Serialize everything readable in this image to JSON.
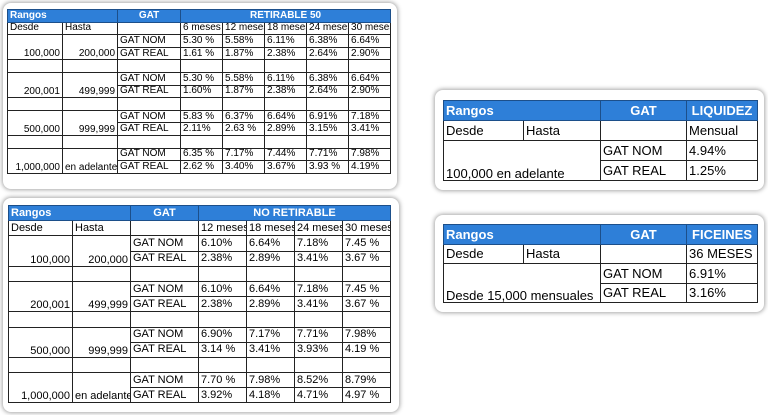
{
  "tables": [
    {
      "header": {
        "range": "Rangos",
        "gat": "GAT",
        "product": "RETIRABLE 50"
      },
      "subheader": {
        "from": "Desde",
        "to": "Hasta",
        "terms": [
          "6 meses",
          "12 meses",
          "18 meses",
          "24 meses",
          "30 meses"
        ]
      },
      "groups": [
        {
          "from": "100,000",
          "to": "200,000",
          "rows": [
            {
              "label": "GAT NOM",
              "values": [
                "5.30 %",
                "5.58%",
                "6.11%",
                "6.38%",
                "6.64%"
              ]
            },
            {
              "label": "GAT REAL",
              "values": [
                "1.61 %",
                "1.87%",
                "2.38%",
                "2.64%",
                "2.90%"
              ]
            }
          ]
        },
        {
          "from": "200,001",
          "to": "499,999",
          "rows": [
            {
              "label": "GAT NOM",
              "values": [
                "5.30 %",
                "5.58%",
                "6.11%",
                "6.38%",
                "6.64%"
              ]
            },
            {
              "label": "GAT REAL",
              "values": [
                "1.60%",
                "1.87%",
                "2.38%",
                "2.64%",
                "2.90%"
              ]
            }
          ]
        },
        {
          "from": "500,000",
          "to": "999,999",
          "rows": [
            {
              "label": "GAT NOM",
              "values": [
                "5.83 %",
                "6.37%",
                "6.64%",
                "6.91%",
                "7.18%"
              ]
            },
            {
              "label": "GAT REAL",
              "values": [
                "2.11%",
                "2.63 %",
                "2.89%",
                "3.15%",
                "3.41%"
              ]
            }
          ]
        },
        {
          "from": "1,000,000",
          "to": "en adelante",
          "rows": [
            {
              "label": "GAT NOM",
              "values": [
                "6.35 %",
                "7.17%",
                "7.44%",
                "7.71%",
                "7.98%"
              ]
            },
            {
              "label": "GAT REAL",
              "values": [
                "2.62 %",
                "3.40%",
                "3.67%",
                "3.93 %",
                "4.19%"
              ]
            }
          ]
        }
      ]
    },
    {
      "header": {
        "range": "Rangos",
        "gat": "GAT",
        "product": "NO RETIRABLE"
      },
      "subheader": {
        "from": "Desde",
        "to": "Hasta",
        "terms": [
          "12 meses",
          "18 meses",
          "24 meses",
          "30 meses"
        ]
      },
      "groups": [
        {
          "from": "100,000",
          "to": "200,000",
          "rows": [
            {
              "label": "GAT NOM",
              "values": [
                "6.10%",
                "6.64%",
                "7.18%",
                "7.45 %"
              ]
            },
            {
              "label": "GAT REAL",
              "values": [
                "2.38%",
                "2.89%",
                "3.41%",
                "3.67 %"
              ]
            }
          ]
        },
        {
          "from": "200,001",
          "to": "499,999",
          "rows": [
            {
              "label": "GAT NOM",
              "values": [
                "6.10%",
                "6.64%",
                "7.18%",
                "7.45 %"
              ]
            },
            {
              "label": "GAT REAL",
              "values": [
                "2.38%",
                "2.89%",
                "3.41%",
                "3.67 %"
              ]
            }
          ]
        },
        {
          "from": "500,000",
          "to": "999,999",
          "rows": [
            {
              "label": "GAT NOM",
              "values": [
                "6.90%",
                "7.17%",
                "7.71%",
                "7.98%"
              ]
            },
            {
              "label": "GAT REAL",
              "values": [
                "3.14 %",
                "3.41%",
                "3.93%",
                "4.19 %"
              ]
            }
          ]
        },
        {
          "from": "1,000,000",
          "to": "en adelante",
          "rows": [
            {
              "label": "GAT NOM",
              "values": [
                "7.70 %",
                "7.98%",
                "8.52%",
                "8.79%"
              ]
            },
            {
              "label": "GAT REAL",
              "values": [
                "3.92%",
                "4.18%",
                "4.71%",
                "4.97 %"
              ]
            }
          ]
        }
      ]
    },
    {
      "header": {
        "range": "Rangos",
        "gat": "GAT",
        "product": "LIQUIDEZ"
      },
      "subheader": {
        "from": "Desde",
        "to": "Hasta",
        "terms": [
          "Mensual"
        ]
      },
      "groups": [
        {
          "range": "100,000 en adelante",
          "rows": [
            {
              "label": "GAT NOM",
              "values": [
                "4.94%"
              ]
            },
            {
              "label": "GAT REAL",
              "values": [
                "1.25%"
              ]
            }
          ]
        }
      ]
    },
    {
      "header": {
        "range": "Rangos",
        "gat": "GAT",
        "product": "FICEINES"
      },
      "subheader": {
        "from": "Desde",
        "to": "Hasta",
        "terms": [
          "36 MESES"
        ]
      },
      "groups": [
        {
          "range": "Desde 15,000 mensuales",
          "rows": [
            {
              "label": "GAT NOM",
              "values": [
                "6.91%"
              ]
            },
            {
              "label": "GAT REAL",
              "values": [
                "3.16%"
              ]
            }
          ]
        }
      ]
    }
  ]
}
